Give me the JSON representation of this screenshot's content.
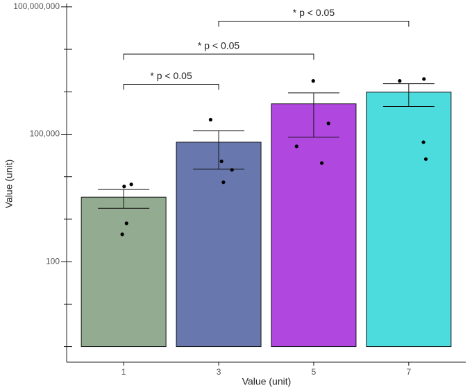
{
  "chart_data": {
    "type": "bar",
    "log_y": true,
    "x_label": "Value (unit)",
    "y_label": "Value (unit)",
    "x": [
      1,
      3,
      5,
      7
    ],
    "values": [
      3300,
      65000,
      520000,
      980000
    ],
    "error_lower": [
      1800,
      15000,
      85000,
      450000
    ],
    "error_upper": [
      5000,
      120000,
      940000,
      1550000
    ],
    "colors": [
      "#93ab90",
      "#6878ae",
      "#b048e0",
      "#4cdcde"
    ],
    "points": [
      {
        "x": [
          1.01,
          1.16,
          1.06,
          0.97
        ],
        "y": [
          5900,
          6600,
          800,
          440
        ]
      },
      {
        "x": [
          2.83,
          3.06,
          3.28,
          3.1
        ],
        "y": [
          220000,
          23000,
          14500,
          7400
        ]
      },
      {
        "x": [
          4.99,
          5.31,
          4.64,
          5.17
        ],
        "y": [
          1800000,
          180000,
          52000,
          21000
        ]
      },
      {
        "x": [
          6.81,
          7.32,
          7.31,
          7.36
        ],
        "y": [
          1800000,
          2000000,
          65000,
          26000
        ]
      }
    ],
    "annotations": [
      {
        "text": "* p < 0.05",
        "x1": 1,
        "x2": 3,
        "y": 1500000
      },
      {
        "text": "* p < 0.05",
        "x1": 1,
        "x2": 5,
        "y": 7700000
      },
      {
        "text": "* p < 0.05",
        "x1": 3,
        "x2": 7,
        "y": 46000000
      }
    ],
    "xlim": [
      -0.2,
      8.2
    ],
    "xticks": [
      1,
      3,
      5,
      7
    ],
    "ylim": [
      0.43,
      120000000
    ],
    "yticks": [
      {
        "value": 100,
        "label": "100"
      },
      {
        "value": 100000,
        "label": "100,000"
      },
      {
        "value": 100000000,
        "label": "100,000,000"
      }
    ],
    "minor_yticks": [
      1,
      10,
      1000,
      10000,
      1000000,
      10000000
    ]
  }
}
